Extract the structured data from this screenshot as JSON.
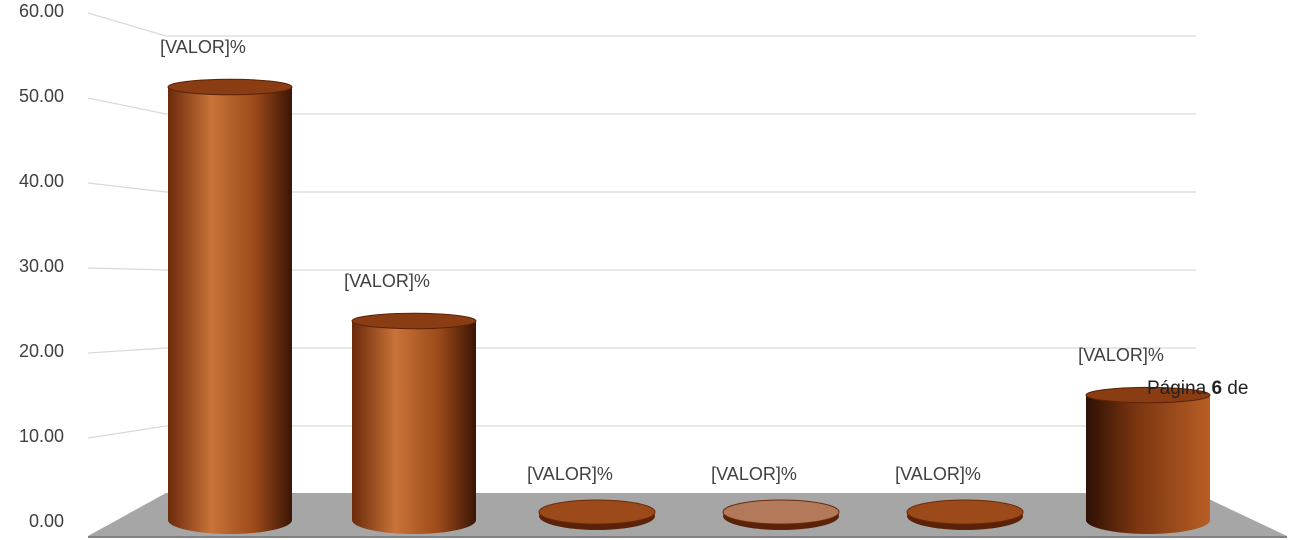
{
  "chart_data": {
    "type": "bar",
    "title": "",
    "xlabel": "",
    "ylabel": "",
    "ylim": [
      0,
      60
    ],
    "yticks": [
      "0.00",
      "10.00",
      "20.00",
      "30.00",
      "40.00",
      "50.00",
      "60.00"
    ],
    "grid": true,
    "categories": [
      "",
      "",
      "",
      "",
      "",
      ""
    ],
    "values": [
      55.0,
      25.0,
      0.6,
      0.4,
      0.5,
      15.5
    ],
    "data_labels": [
      "[VALOR]%",
      "[VALOR]%",
      "[VALOR]%",
      "[VALOR]%",
      "[VALOR]%",
      "[VALOR]%"
    ],
    "colors": {
      "bar": "#9c4a1a",
      "bar_dark": "#3a1505",
      "bar_light": "#c9733a",
      "floor": "#a6a6a6",
      "grid": "#d9d9d9"
    }
  },
  "footer": {
    "prefix": "Página ",
    "page": "6",
    "suffix": " de"
  }
}
